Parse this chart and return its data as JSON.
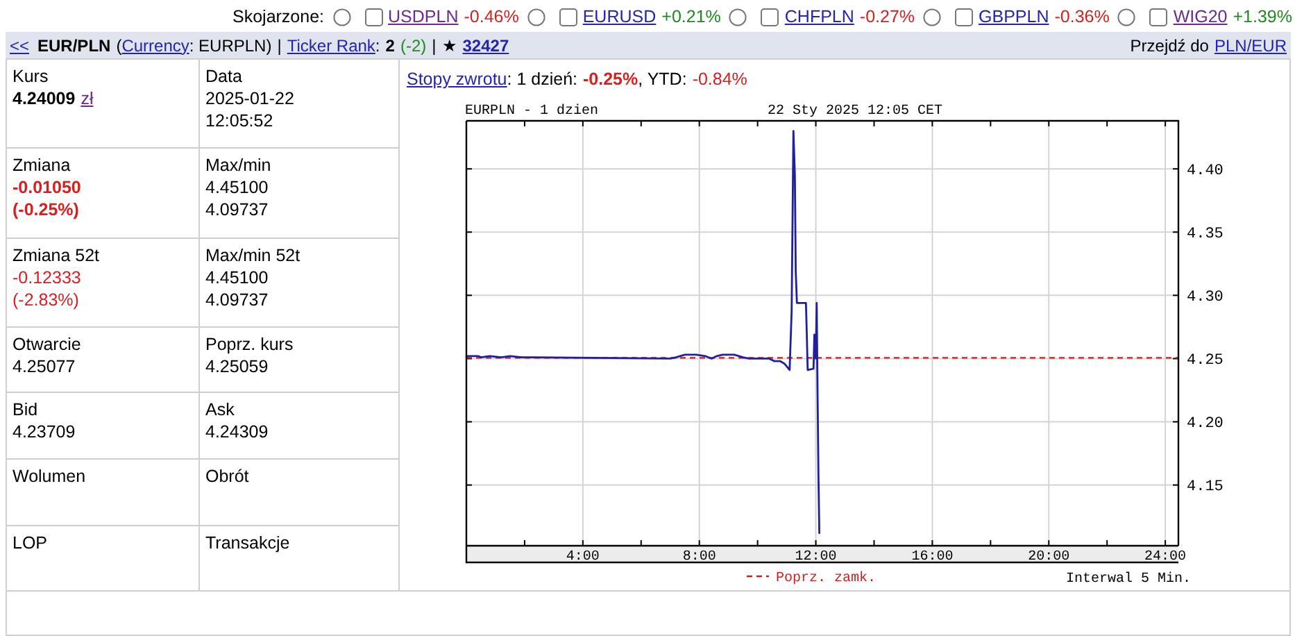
{
  "chart_data": [
    {
      "type": "other",
      "annotations": [
        "Skojarzone:",
        "USDPLN",
        "-0.46%",
        "EURUSD",
        "+0.21%",
        "CHFPLN",
        "-0.27%",
        "GBPPLN",
        "-0.36%",
        "WIG20",
        "+1.39%",
        "<<",
        "EUR/PLN",
        "(",
        "Currency",
        ": EURPLN)",
        "|",
        "Ticker Rank",
        ":",
        "2",
        "(-2)",
        "|",
        "★",
        "32427",
        "Przejdź do",
        "PLN/EUR",
        "Kurs",
        "4.24009",
        "zł",
        "Data",
        "2025-01-22",
        "12:05:52",
        "Zmiana",
        "-0.01050",
        "(-0.25%)",
        "Max/min",
        "4.45100",
        "4.09737",
        "Zmiana 52t",
        "-0.12333",
        "(-2.83%)",
        "Max/min 52t",
        "4.45100",
        "4.09737",
        "Otwarcie",
        "4.25077",
        "Poprz. kurs",
        "4.25059",
        "Bid",
        "4.23709",
        "Ask",
        "4.24309",
        "Wolumen",
        "Obrót",
        "LOP",
        "Transakcje",
        "Stopy zwrotu",
        ": 1 dzień:",
        "-0.25%",
        ", YTD:",
        "-0.84%"
      ]
    },
    {
      "type": "line",
      "title": "EURPLN - 1 dzien",
      "subtitle": "22 Sty 2025 12:05 CET",
      "x": [
        0,
        0.4,
        0.5,
        0.8,
        1.2,
        1.5,
        1.9,
        2.3,
        7.0,
        7.2,
        7.5,
        7.9,
        8.2,
        8.42,
        8.6,
        8.8,
        9.2,
        9.5,
        9.7,
        10.4,
        10.57,
        10.77,
        10.92,
        11.1,
        11.17,
        11.23,
        11.28,
        11.31,
        11.35,
        11.66,
        11.69,
        11.72,
        11.92,
        11.95,
        12.0,
        12.03,
        12.05,
        12.09,
        12.12
      ],
      "series": [
        {
          "color": "#1f1f9f",
          "values": [
            4.252,
            4.252,
            4.251,
            4.252,
            4.251,
            4.252,
            4.251,
            4.251,
            4.25,
            4.251,
            4.253,
            4.253,
            4.252,
            4.25,
            4.252,
            4.253,
            4.253,
            4.251,
            4.25,
            4.25,
            4.248,
            4.248,
            4.246,
            4.241,
            4.288,
            4.43,
            4.395,
            4.319,
            4.294,
            4.294,
            4.269,
            4.241,
            4.242,
            4.269,
            4.25,
            4.294,
            4.243,
            4.157,
            4.112
          ]
        }
      ],
      "xlim": [
        0,
        24.45
      ],
      "xticks": [
        {
          "value": 2,
          "label": null
        },
        {
          "value": 4,
          "label": "4:00"
        },
        {
          "value": 6,
          "label": null
        },
        {
          "value": 8,
          "label": "8:00"
        },
        {
          "value": 10,
          "label": null
        },
        {
          "value": 12,
          "label": "12:00"
        },
        {
          "value": 14,
          "label": null
        },
        {
          "value": 16,
          "label": "16:00"
        },
        {
          "value": 18,
          "label": null
        },
        {
          "value": 20,
          "label": "20:00"
        },
        {
          "value": 22,
          "label": null
        },
        {
          "value": 24,
          "label": "24:00"
        }
      ],
      "ylim": [
        4.102,
        4.438
      ],
      "yticks": [
        4.15,
        {
          "value": 4.2,
          "label": "4.20"
        },
        4.25,
        {
          "value": 4.3,
          "label": "4.30"
        },
        4.35,
        {
          "value": 4.4,
          "label": "4.40"
        }
      ],
      "grid": true,
      "legend": "bottom",
      "ref_lines": [
        {
          "axis": "y",
          "value": 4.2506,
          "label": "Poprz. zamk.",
          "color": "#cc1f1f",
          "line_style": "dashed"
        }
      ],
      "annotations": [
        "Interwal 5 Min."
      ]
    }
  ]
}
